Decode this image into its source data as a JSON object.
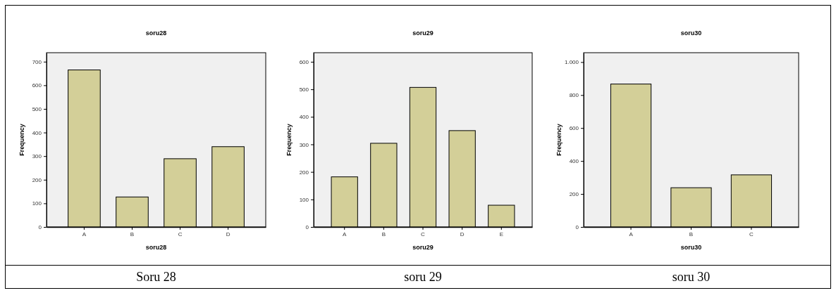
{
  "chart_data": [
    {
      "type": "bar",
      "title": "soru28",
      "xlabel": "soru28",
      "ylabel": "Frequency",
      "categories": [
        "A",
        "B",
        "C",
        "D"
      ],
      "values": [
        665,
        127,
        289,
        340
      ],
      "color": "#d3cf98",
      "ylim": [
        0,
        738
      ],
      "yticks": [
        0,
        100,
        200,
        300,
        400,
        500,
        600,
        700
      ],
      "annotations": [
        "Soru 28"
      ]
    },
    {
      "type": "bar",
      "title": "soru29",
      "xlabel": "soru29",
      "ylabel": "Frequency",
      "categories": [
        "A",
        "B",
        "C",
        "D",
        "E"
      ],
      "values": [
        182,
        304,
        507,
        350,
        79
      ],
      "color": "#d3cf98",
      "ylim": [
        0,
        633
      ],
      "yticks": [
        0,
        100,
        200,
        300,
        400,
        500,
        600
      ],
      "annotations": [
        "soru 29"
      ]
    },
    {
      "type": "bar",
      "title": "soru30",
      "xlabel": "soru30",
      "ylabel": "Frequency",
      "categories": [
        "A",
        "B",
        "C"
      ],
      "values": [
        867,
        238,
        316
      ],
      "color": "#d3cf98",
      "ylim": [
        0,
        1057
      ],
      "yticks": [
        0,
        200,
        400,
        600,
        800,
        {
          "value": 1000,
          "label": "1.000"
        }
      ],
      "annotations": [
        "soru 30"
      ]
    }
  ]
}
